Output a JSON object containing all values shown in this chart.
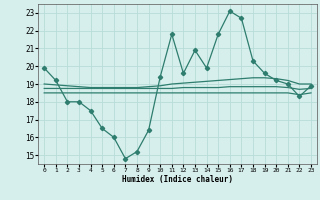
{
  "xlabel": "Humidex (Indice chaleur)",
  "x": [
    0,
    1,
    2,
    3,
    4,
    5,
    6,
    7,
    8,
    9,
    10,
    11,
    12,
    13,
    14,
    15,
    16,
    17,
    18,
    19,
    20,
    21,
    22,
    23
  ],
  "line_max": [
    19.9,
    19.2,
    18.0,
    18.0,
    17.5,
    16.5,
    16.0,
    14.8,
    15.2,
    16.4,
    19.4,
    21.8,
    19.6,
    20.9,
    19.9,
    21.8,
    23.1,
    22.7,
    20.3,
    19.6,
    19.2,
    19.0,
    18.3,
    18.9
  ],
  "line_upper": [
    19.0,
    18.95,
    18.9,
    18.85,
    18.8,
    18.8,
    18.8,
    18.8,
    18.8,
    18.85,
    18.9,
    19.0,
    19.05,
    19.1,
    19.15,
    19.2,
    19.25,
    19.3,
    19.35,
    19.35,
    19.3,
    19.2,
    19.0,
    19.0
  ],
  "line_mid": [
    18.75,
    18.75,
    18.75,
    18.75,
    18.75,
    18.75,
    18.75,
    18.75,
    18.75,
    18.75,
    18.75,
    18.75,
    18.8,
    18.8,
    18.8,
    18.8,
    18.85,
    18.85,
    18.85,
    18.85,
    18.85,
    18.8,
    18.7,
    18.75
  ],
  "line_lower": [
    18.5,
    18.5,
    18.5,
    18.5,
    18.5,
    18.5,
    18.5,
    18.5,
    18.5,
    18.5,
    18.5,
    18.5,
    18.5,
    18.5,
    18.5,
    18.5,
    18.5,
    18.5,
    18.5,
    18.5,
    18.5,
    18.5,
    18.4,
    18.5
  ],
  "line_color": "#2e7d6e",
  "bg_color": "#d6efec",
  "grid_color": "#b8ddd9",
  "ylim": [
    14.5,
    23.5
  ],
  "xlim": [
    -0.5,
    23.5
  ],
  "yticks": [
    15,
    16,
    17,
    18,
    19,
    20,
    21,
    22,
    23
  ],
  "xticks": [
    0,
    1,
    2,
    3,
    4,
    5,
    6,
    7,
    8,
    9,
    10,
    11,
    12,
    13,
    14,
    15,
    16,
    17,
    18,
    19,
    20,
    21,
    22,
    23
  ]
}
